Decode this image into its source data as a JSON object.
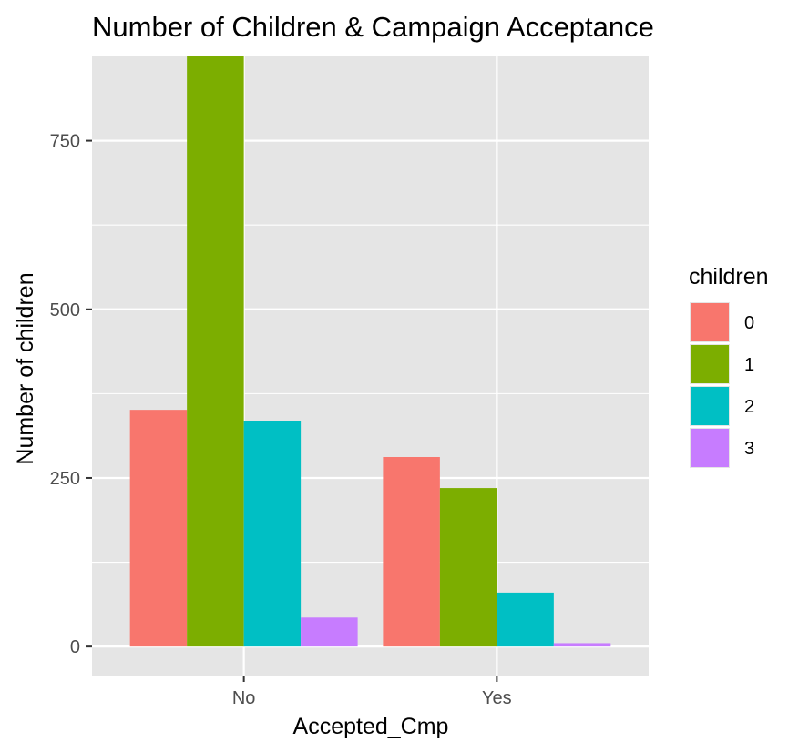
{
  "chart_data": {
    "type": "bar",
    "title": "Number of Children & Campaign Acceptance",
    "xlabel": "Accepted_Cmp",
    "ylabel": "Number of children",
    "categories": [
      "No",
      "Yes"
    ],
    "legend_title": "children",
    "legend_position": "right",
    "grid": true,
    "ylim": [
      -43,
      875
    ],
    "yticks": [
      0,
      250,
      500,
      750
    ],
    "ytick_labels": [
      "0",
      "250",
      "500",
      "750"
    ],
    "series": [
      {
        "name": "0",
        "color": "#F8766D",
        "values": [
          351,
          281
        ]
      },
      {
        "name": "1",
        "color": "#7CAE00",
        "values": [
          875,
          235
        ]
      },
      {
        "name": "2",
        "color": "#00BFC4",
        "values": [
          335,
          80
        ]
      },
      {
        "name": "3",
        "color": "#C77CFF",
        "values": [
          43,
          5
        ]
      }
    ],
    "colors": {
      "panel_background": "#E5E5E5",
      "grid_major": "#FFFFFF",
      "tick_mark": "#333333",
      "tick_text": "#4D4D4D"
    }
  }
}
